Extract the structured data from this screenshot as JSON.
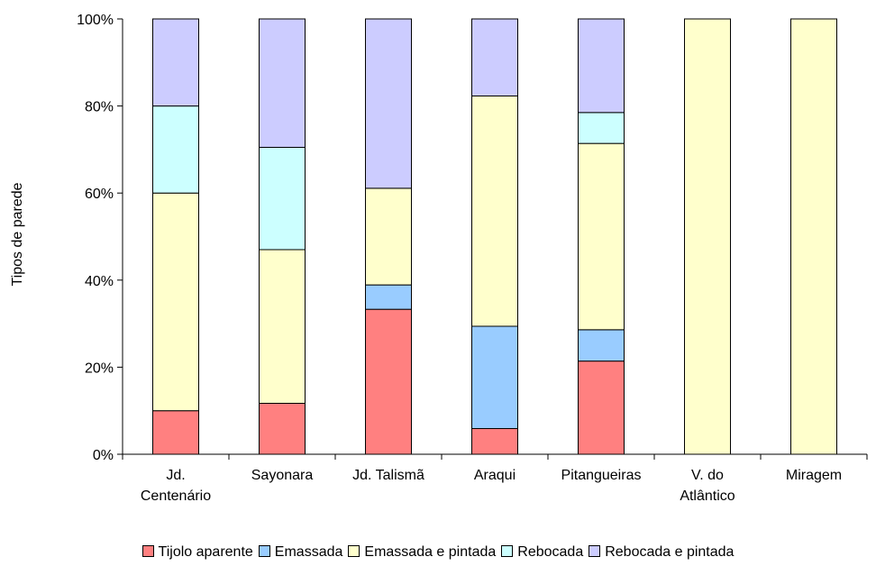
{
  "chart_data": {
    "type": "bar",
    "stacked": "percent",
    "ylabel": "Tipos de parede",
    "xlabel": "",
    "ylim": [
      0,
      100
    ],
    "yticks": [
      "0%",
      "20%",
      "40%",
      "60%",
      "80%",
      "100%"
    ],
    "categories": [
      [
        "Jd.",
        "Centenário"
      ],
      [
        "Sayonara"
      ],
      [
        "Jd. Talismã"
      ],
      [
        "Araqui"
      ],
      [
        "Pitangueiras"
      ],
      [
        "V. do",
        "Atlântico"
      ],
      [
        "Miragem"
      ]
    ],
    "series": [
      {
        "name": "Tijolo aparente",
        "color": "#FF8080",
        "values": [
          10,
          11.7,
          33.3,
          5.9,
          21.4,
          0,
          0
        ]
      },
      {
        "name": "Emassada",
        "color": "#99CCFF",
        "values": [
          0,
          0,
          5.6,
          23.5,
          7.2,
          0,
          0
        ]
      },
      {
        "name": "Emassada e pintada",
        "color": "#FFFFCC",
        "values": [
          50,
          35.3,
          22.2,
          52.9,
          42.8,
          100,
          100
        ]
      },
      {
        "name": "Rebocada",
        "color": "#CCFFFF",
        "values": [
          20,
          23.5,
          0,
          0,
          7.1,
          0,
          0
        ]
      },
      {
        "name": "Rebocada e pintada",
        "color": "#CCCCFF",
        "values": [
          20,
          29.5,
          38.9,
          17.7,
          21.5,
          0,
          0
        ]
      }
    ],
    "grid": false,
    "legend_position": "bottom"
  }
}
